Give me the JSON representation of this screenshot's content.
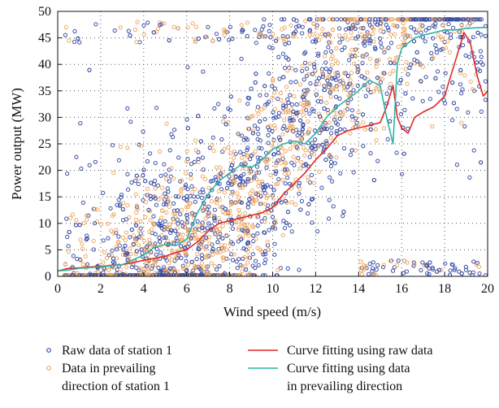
{
  "chart_data": {
    "type": "scatter",
    "xlabel": "Wind speed (m/s)",
    "ylabel": "Power output (MW)",
    "xlim": [
      0,
      20
    ],
    "ylim": [
      0,
      50
    ],
    "xticks": [
      0,
      2,
      4,
      6,
      8,
      10,
      12,
      14,
      16,
      18,
      20
    ],
    "yticks": [
      0,
      5,
      10,
      15,
      20,
      25,
      30,
      35,
      40,
      45,
      50
    ],
    "grid": "dotted",
    "legend_position": "bottom",
    "colors": {
      "raw": "#3a4fa8",
      "prevailing": "#f0a860",
      "fit_raw": "#e0282a",
      "fit_prevailing": "#2fb3a6"
    },
    "series": [
      {
        "name": "Raw data of station 1",
        "kind": "scatter",
        "color": "#3a4fa8",
        "legend_lines": [
          "Raw data of station 1"
        ]
      },
      {
        "name": "Data in prevailing direction of station 1",
        "kind": "scatter",
        "color": "#f0a860",
        "legend_lines": [
          "Data in prevailing",
          "direction of station 1"
        ]
      },
      {
        "name": "Curve fitting using raw data",
        "kind": "line",
        "color": "#e0282a",
        "legend_lines": [
          "Curve fitting using raw data"
        ],
        "x": [
          0,
          0.5,
          1,
          2,
          3,
          4,
          5,
          5.5,
          6,
          6.5,
          7,
          7.5,
          8,
          8.5,
          9,
          9.5,
          10,
          10.5,
          11,
          11.5,
          12,
          12.5,
          13,
          13.5,
          14,
          14.5,
          15,
          15.3,
          15.6,
          15.8,
          16,
          16.3,
          16.6,
          17,
          17.5,
          18,
          18.3,
          18.6,
          18.9,
          19.2,
          19.5,
          19.8,
          20
        ],
        "y": [
          1,
          1.5,
          1.6,
          1.9,
          2.2,
          3,
          3.8,
          4.5,
          5,
          6.5,
          8.5,
          10,
          10.5,
          11,
          11.5,
          12,
          13,
          15.5,
          17.5,
          19.5,
          22,
          24,
          26.5,
          27.5,
          28,
          28.5,
          29,
          32,
          36,
          30,
          28,
          27,
          30,
          31,
          32,
          34,
          38,
          42,
          46,
          44,
          38,
          34,
          35
        ]
      },
      {
        "name": "Curve fitting using data in prevailing direction",
        "kind": "line",
        "color": "#2fb3a6",
        "legend_lines": [
          "Curve fitting using data",
          "in prevailing direction"
        ],
        "x": [
          0,
          0.5,
          1,
          2,
          3,
          4,
          4.5,
          5,
          5.5,
          6,
          6.5,
          7,
          7.5,
          8,
          8.5,
          9,
          9.5,
          10,
          10.5,
          11,
          11.5,
          12,
          12.5,
          13,
          13.5,
          14,
          14.5,
          15,
          15.3,
          15.6,
          15.8,
          16,
          16.3,
          16.6,
          17,
          17.5,
          18,
          18.5,
          19,
          19.5,
          20
        ],
        "y": [
          1,
          1.2,
          1.5,
          1.8,
          2.2,
          4,
          5.5,
          6,
          5.8,
          7,
          12,
          15.5,
          18,
          19.5,
          21,
          20.5,
          22,
          24,
          25,
          25.5,
          25,
          27,
          30,
          32,
          33.5,
          35,
          37,
          36,
          30,
          25,
          40,
          43,
          44,
          45,
          45.5,
          46,
          46.5,
          46.5,
          46.8,
          46.9,
          47
        ]
      }
    ]
  }
}
